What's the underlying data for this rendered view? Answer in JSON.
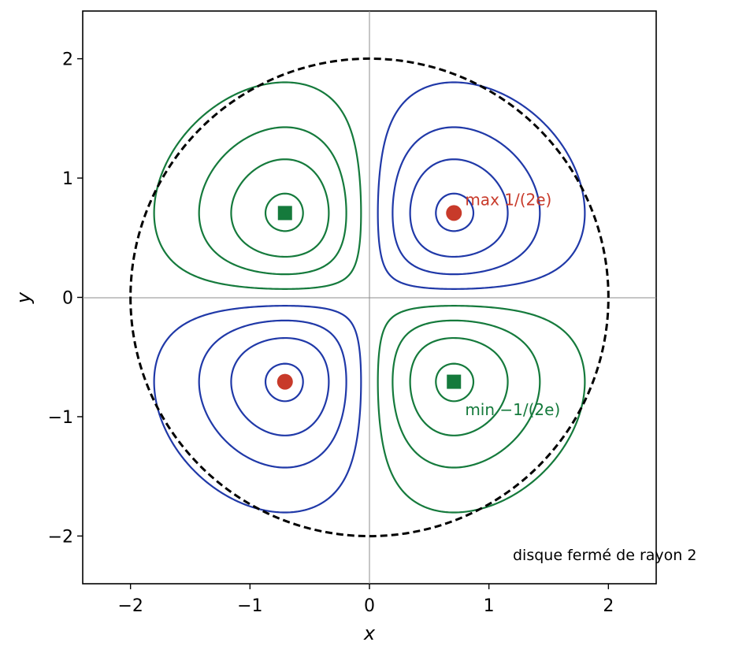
{
  "chart_data": {
    "type": "contour",
    "xlabel": "x",
    "ylabel": "y",
    "xlim": [
      -2.4,
      2.4
    ],
    "ylim": [
      -2.4,
      2.4
    ],
    "x_ticks": [
      -2,
      -1,
      0,
      1,
      2
    ],
    "y_ticks": [
      -2,
      -1,
      0,
      1,
      2
    ],
    "tick_labels_x": [
      "−2",
      "−1",
      "0",
      "1",
      "2"
    ],
    "tick_labels_y": [
      "−2",
      "−1",
      "0",
      "1",
      "2"
    ],
    "function_levels_positive": [
      0.03,
      0.08,
      0.13,
      0.175
    ],
    "function_levels_negative": [
      -0.03,
      -0.08,
      -0.13,
      -0.175
    ],
    "positive_color": "#2039a8",
    "negative_color": "#157a3c",
    "circle": {
      "center": [
        0,
        0
      ],
      "radius": 2,
      "style": "dashed",
      "color": "#000000"
    },
    "points": [
      {
        "x": 0.707,
        "y": 0.707,
        "kind": "max",
        "marker": "circle",
        "color": "#c83a2a"
      },
      {
        "x": -0.707,
        "y": -0.707,
        "kind": "max",
        "marker": "circle",
        "color": "#c83a2a"
      },
      {
        "x": -0.707,
        "y": 0.707,
        "kind": "min",
        "marker": "square",
        "color": "#157a3c"
      },
      {
        "x": 0.707,
        "y": -0.707,
        "kind": "min",
        "marker": "square",
        "color": "#157a3c"
      }
    ],
    "annotations": [
      {
        "text": "max 1/(2e)",
        "x": 0.8,
        "y": 0.82,
        "color": "#c83a2a"
      },
      {
        "text": "min −1/(2e)",
        "x": 0.8,
        "y": -0.94,
        "color": "#157a3c"
      }
    ],
    "caption": "disque fermé de rayon 2"
  }
}
